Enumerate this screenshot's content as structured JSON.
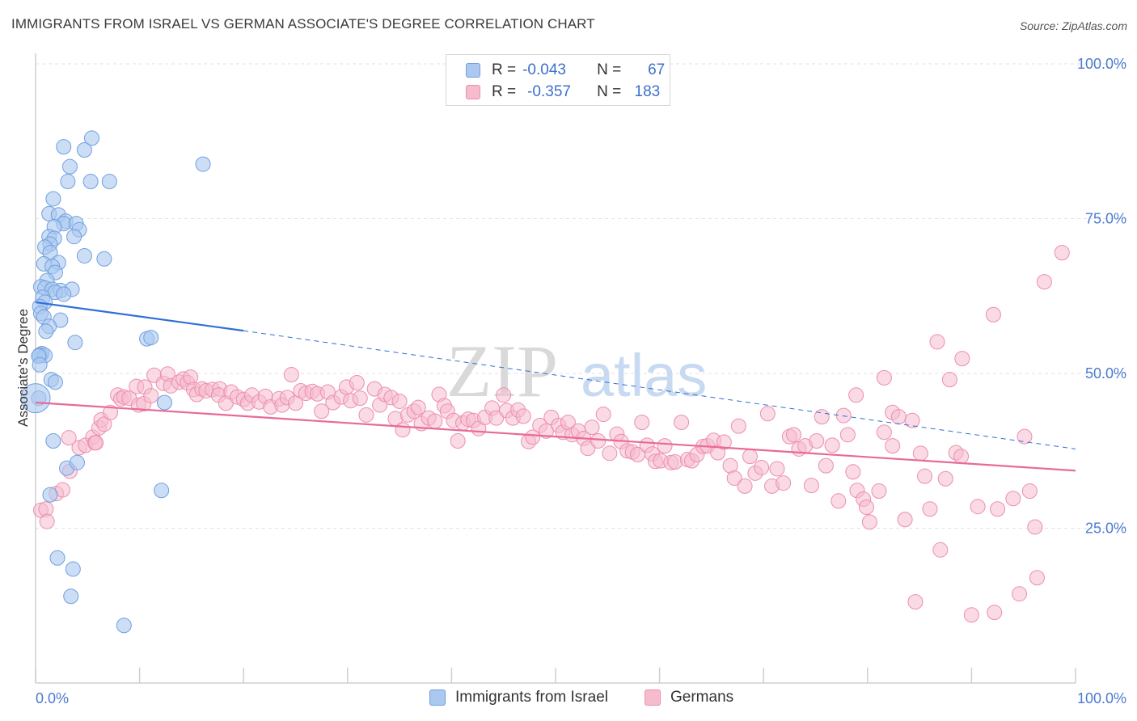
{
  "title": "IMMIGRANTS FROM ISRAEL VS GERMAN ASSOCIATE'S DEGREE CORRELATION CHART",
  "source": "Source: ZipAtlas.com",
  "watermark": {
    "zip": "ZIP",
    "atlas": "atlas"
  },
  "legend": {
    "rows": [
      {
        "r_label": "R =",
        "r_value": "-0.043",
        "n_label": "N =",
        "n_value": "67",
        "color": "#aac8f0"
      },
      {
        "r_label": "R =",
        "r_value": "-0.357",
        "n_label": "N =",
        "n_value": "183",
        "color": "#f6bccd"
      }
    ]
  },
  "bottom_legend": {
    "items": [
      {
        "label": "Immigrants from Israel",
        "color": "#aac8f0"
      },
      {
        "label": "Germans",
        "color": "#f6bccd"
      }
    ]
  },
  "chart_data": {
    "type": "scatter",
    "title": "IMMIGRANTS FROM ISRAEL VS GERMAN ASSOCIATE'S DEGREE CORRELATION CHART",
    "xlabel": "",
    "ylabel": "Associate's Degree",
    "xlim": [
      0,
      100
    ],
    "ylim": [
      0,
      100
    ],
    "x_tick_labels": [
      "0.0%",
      "100.0%"
    ],
    "y_tick_labels": [
      "25.0%",
      "50.0%",
      "75.0%",
      "100.0%"
    ],
    "y_ticks": [
      25,
      50,
      75,
      100
    ],
    "grid": true,
    "legend_position": "top-center",
    "colors": {
      "israel_fill": "#aac8f0",
      "israel_stroke": "#6f9fe0",
      "israel_line": "#2f6fd6",
      "german_fill": "#f6bccd",
      "german_stroke": "#ec8fad",
      "german_line": "#e8699a",
      "tick": "#4a7bd0",
      "grid": "#e2e2e2"
    },
    "series": [
      {
        "name": "Immigrants from Israel",
        "trend": {
          "x0": 0,
          "y0": 61.5,
          "x1": 20,
          "y1": 56.9,
          "dash_to_x": 100,
          "dash_to_y": 37.8
        },
        "points": [
          [
            5.4,
            88.0
          ],
          [
            2.7,
            86.6
          ],
          [
            4.7,
            86.1
          ],
          [
            16.1,
            83.8
          ],
          [
            3.3,
            83.4
          ],
          [
            5.3,
            81.0
          ],
          [
            7.1,
            81.0
          ],
          [
            3.1,
            81.0
          ],
          [
            1.7,
            78.2
          ],
          [
            1.3,
            75.8
          ],
          [
            2.2,
            75.6
          ],
          [
            2.9,
            74.6
          ],
          [
            2.7,
            74.2
          ],
          [
            3.9,
            74.2
          ],
          [
            1.8,
            73.7
          ],
          [
            4.2,
            73.2
          ],
          [
            1.3,
            72.1
          ],
          [
            3.7,
            72.1
          ],
          [
            1.8,
            71.8
          ],
          [
            1.4,
            70.9
          ],
          [
            0.9,
            70.4
          ],
          [
            1.4,
            69.5
          ],
          [
            4.7,
            69.0
          ],
          [
            6.6,
            68.5
          ],
          [
            0.8,
            67.7
          ],
          [
            2.2,
            67.9
          ],
          [
            1.6,
            67.3
          ],
          [
            1.9,
            66.3
          ],
          [
            1.1,
            65.0
          ],
          [
            0.5,
            64.0
          ],
          [
            0.9,
            63.8
          ],
          [
            1.6,
            63.6
          ],
          [
            2.4,
            63.4
          ],
          [
            3.5,
            63.6
          ],
          [
            1.9,
            63.1
          ],
          [
            2.7,
            62.8
          ],
          [
            0.7,
            62.3
          ],
          [
            0.9,
            61.5
          ],
          [
            0.4,
            60.8
          ],
          [
            0.5,
            59.7
          ],
          [
            0.8,
            59.1
          ],
          [
            2.4,
            58.6
          ],
          [
            1.3,
            57.6
          ],
          [
            1.0,
            56.8
          ],
          [
            10.7,
            55.6
          ],
          [
            11.1,
            55.8
          ],
          [
            3.8,
            55.0
          ],
          [
            0.6,
            53.2
          ],
          [
            0.4,
            53.0
          ],
          [
            0.9,
            52.9
          ],
          [
            0.3,
            52.8
          ],
          [
            0.4,
            51.4
          ],
          [
            1.5,
            49.0
          ],
          [
            1.9,
            48.6
          ],
          [
            0.3,
            46.0
          ],
          [
            12.4,
            45.3
          ],
          [
            1.7,
            39.1
          ],
          [
            3.0,
            34.7
          ],
          [
            4.0,
            35.6
          ],
          [
            1.4,
            30.4
          ],
          [
            12.1,
            31.1
          ],
          [
            2.1,
            20.2
          ],
          [
            3.6,
            18.4
          ],
          [
            3.4,
            14.0
          ],
          [
            8.5,
            9.3
          ]
        ]
      },
      {
        "name": "Germans",
        "trend": {
          "x0": 0,
          "y0": 45.3,
          "x1": 100,
          "y1": 34.3
        },
        "points": [
          [
            98.7,
            69.5
          ],
          [
            97.0,
            64.8
          ],
          [
            92.1,
            59.5
          ],
          [
            86.7,
            55.1
          ],
          [
            89.1,
            52.4
          ],
          [
            81.6,
            49.3
          ],
          [
            87.9,
            49.0
          ],
          [
            78.9,
            46.5
          ],
          [
            82.4,
            43.7
          ],
          [
            95.1,
            39.8
          ],
          [
            0.5,
            27.9
          ],
          [
            1.0,
            28.1
          ],
          [
            1.1,
            26.1
          ],
          [
            2.0,
            30.6
          ],
          [
            2.6,
            31.2
          ],
          [
            3.2,
            39.6
          ],
          [
            3.3,
            34.2
          ],
          [
            4.2,
            38.0
          ],
          [
            4.8,
            38.4
          ],
          [
            5.5,
            39.7
          ],
          [
            5.7,
            38.8
          ],
          [
            5.8,
            38.8
          ],
          [
            6.1,
            41.2
          ],
          [
            6.3,
            42.5
          ],
          [
            6.6,
            41.8
          ],
          [
            7.2,
            43.7
          ],
          [
            7.9,
            46.5
          ],
          [
            8.2,
            45.9
          ],
          [
            8.5,
            46.2
          ],
          [
            9.0,
            46.0
          ],
          [
            9.9,
            44.9
          ],
          [
            9.7,
            47.9
          ],
          [
            10.4,
            45.1
          ],
          [
            10.5,
            47.8
          ],
          [
            11.1,
            46.4
          ],
          [
            11.4,
            49.7
          ],
          [
            12.3,
            48.4
          ],
          [
            12.7,
            49.9
          ],
          [
            13.0,
            48.0
          ],
          [
            13.8,
            48.6
          ],
          [
            14.2,
            49.1
          ],
          [
            14.6,
            48.5
          ],
          [
            14.9,
            49.4
          ],
          [
            15.2,
            47.4
          ],
          [
            15.5,
            46.6
          ],
          [
            16.0,
            47.5
          ],
          [
            16.4,
            47.2
          ],
          [
            17.0,
            47.4
          ],
          [
            17.7,
            47.5
          ],
          [
            17.6,
            46.5
          ],
          [
            18.3,
            45.2
          ],
          [
            18.8,
            47.0
          ],
          [
            19.4,
            46.2
          ],
          [
            20.0,
            45.8
          ],
          [
            20.4,
            45.2
          ],
          [
            20.8,
            46.5
          ],
          [
            21.5,
            45.4
          ],
          [
            22.1,
            46.3
          ],
          [
            22.6,
            44.6
          ],
          [
            23.4,
            45.9
          ],
          [
            23.7,
            44.9
          ],
          [
            24.2,
            46.1
          ],
          [
            24.6,
            49.8
          ],
          [
            25.0,
            45.2
          ],
          [
            25.5,
            47.2
          ],
          [
            26.0,
            46.8
          ],
          [
            26.6,
            47.1
          ],
          [
            27.1,
            46.7
          ],
          [
            27.5,
            43.9
          ],
          [
            28.1,
            47.0
          ],
          [
            28.6,
            45.3
          ],
          [
            29.4,
            46.2
          ],
          [
            29.9,
            47.8
          ],
          [
            30.3,
            45.6
          ],
          [
            30.9,
            48.5
          ],
          [
            31.2,
            46.0
          ],
          [
            31.8,
            43.3
          ],
          [
            32.6,
            47.5
          ],
          [
            33.1,
            44.9
          ],
          [
            33.6,
            46.6
          ],
          [
            34.2,
            46.1
          ],
          [
            34.6,
            42.7
          ],
          [
            35.0,
            45.5
          ],
          [
            35.3,
            40.9
          ],
          [
            35.8,
            43.3
          ],
          [
            36.4,
            43.9
          ],
          [
            36.8,
            44.5
          ],
          [
            37.1,
            41.9
          ],
          [
            37.8,
            42.8
          ],
          [
            38.4,
            42.3
          ],
          [
            38.8,
            46.6
          ],
          [
            39.3,
            44.8
          ],
          [
            39.6,
            43.9
          ],
          [
            40.2,
            42.4
          ],
          [
            40.6,
            39.1
          ],
          [
            41.1,
            42.0
          ],
          [
            41.6,
            42.6
          ],
          [
            42.1,
            42.4
          ],
          [
            42.6,
            41.1
          ],
          [
            43.2,
            42.9
          ],
          [
            43.9,
            44.4
          ],
          [
            44.3,
            42.8
          ],
          [
            45.0,
            46.5
          ],
          [
            45.3,
            44.0
          ],
          [
            45.9,
            42.8
          ],
          [
            46.4,
            44.1
          ],
          [
            46.9,
            43.1
          ],
          [
            47.4,
            39.0
          ],
          [
            47.8,
            39.7
          ],
          [
            48.5,
            41.6
          ],
          [
            49.1,
            40.7
          ],
          [
            49.6,
            42.9
          ],
          [
            50.3,
            41.6
          ],
          [
            50.7,
            40.5
          ],
          [
            51.2,
            42.1
          ],
          [
            51.6,
            40.1
          ],
          [
            52.2,
            40.7
          ],
          [
            52.7,
            39.5
          ],
          [
            53.1,
            37.9
          ],
          [
            53.5,
            41.3
          ],
          [
            54.1,
            39.1
          ],
          [
            54.6,
            43.4
          ],
          [
            55.2,
            37.1
          ],
          [
            55.9,
            40.2
          ],
          [
            56.3,
            39.0
          ],
          [
            56.9,
            37.5
          ],
          [
            57.4,
            37.3
          ],
          [
            57.9,
            36.9
          ],
          [
            58.3,
            42.1
          ],
          [
            58.8,
            38.4
          ],
          [
            59.3,
            37.0
          ],
          [
            59.6,
            35.8
          ],
          [
            60.1,
            35.9
          ],
          [
            60.5,
            38.3
          ],
          [
            61.1,
            35.6
          ],
          [
            61.5,
            35.7
          ],
          [
            62.1,
            42.1
          ],
          [
            62.7,
            36.1
          ],
          [
            63.1,
            35.9
          ],
          [
            63.6,
            36.9
          ],
          [
            64.2,
            38.2
          ],
          [
            64.6,
            38.3
          ],
          [
            65.2,
            39.2
          ],
          [
            65.6,
            37.2
          ],
          [
            66.2,
            38.9
          ],
          [
            66.8,
            35.1
          ],
          [
            67.2,
            33.1
          ],
          [
            67.6,
            41.5
          ],
          [
            68.2,
            31.8
          ],
          [
            68.7,
            36.6
          ],
          [
            69.2,
            33.9
          ],
          [
            69.8,
            34.8
          ],
          [
            70.4,
            43.5
          ],
          [
            70.8,
            31.8
          ],
          [
            71.3,
            34.6
          ],
          [
            71.9,
            32.3
          ],
          [
            72.5,
            39.8
          ],
          [
            72.9,
            40.1
          ],
          [
            73.4,
            37.8
          ],
          [
            74.0,
            38.3
          ],
          [
            74.6,
            31.9
          ],
          [
            75.1,
            39.1
          ],
          [
            75.6,
            43.0
          ],
          [
            76.0,
            35.1
          ],
          [
            76.6,
            38.4
          ],
          [
            77.2,
            29.4
          ],
          [
            77.7,
            43.2
          ],
          [
            78.1,
            40.1
          ],
          [
            78.6,
            34.1
          ],
          [
            79.0,
            31.1
          ],
          [
            79.6,
            29.7
          ],
          [
            79.9,
            28.4
          ],
          [
            80.2,
            26.0
          ],
          [
            81.1,
            31.0
          ],
          [
            81.6,
            40.5
          ],
          [
            82.4,
            38.3
          ],
          [
            83.0,
            43.0
          ],
          [
            83.6,
            26.4
          ],
          [
            84.3,
            42.4
          ],
          [
            85.1,
            37.1
          ],
          [
            85.5,
            33.4
          ],
          [
            86.0,
            28.1
          ],
          [
            87.5,
            33.0
          ],
          [
            88.5,
            37.2
          ],
          [
            89.0,
            36.6
          ],
          [
            90.6,
            28.5
          ],
          [
            92.5,
            28.1
          ],
          [
            84.6,
            13.1
          ],
          [
            87.0,
            21.5
          ],
          [
            90.0,
            11.0
          ],
          [
            92.2,
            11.4
          ],
          [
            94.6,
            14.4
          ],
          [
            96.3,
            17.0
          ],
          [
            94.0,
            29.8
          ],
          [
            95.6,
            31.0
          ],
          [
            96.1,
            25.2
          ]
        ]
      }
    ]
  }
}
